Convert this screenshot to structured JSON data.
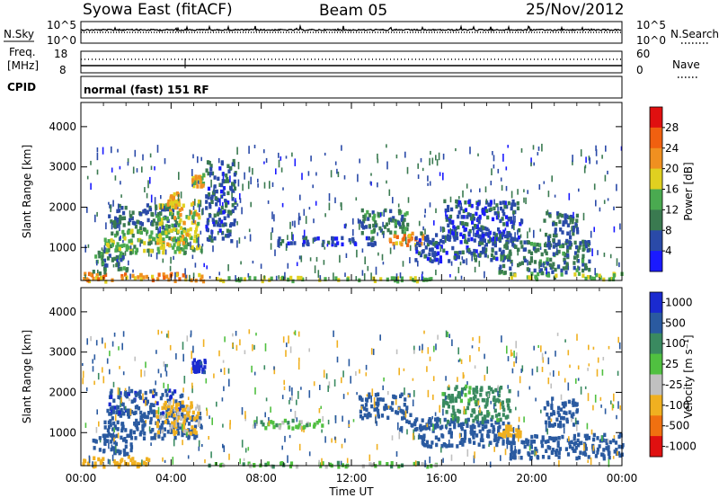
{
  "header": {
    "station": "Syowa East (fitACF)",
    "beam": "Beam 05",
    "date": "25/Nov/2012"
  },
  "nsky_panel": {
    "left_label": "N.Sky",
    "right_label": "N.Search",
    "left_ticks": [
      "10^5",
      "10^0"
    ],
    "right_ticks": [
      "10^5",
      "10^0"
    ],
    "series": [
      {
        "name": "N.Sky",
        "style": "solid"
      },
      {
        "name": "N.Search",
        "style": "dotted"
      }
    ]
  },
  "freq_panel": {
    "left_label_line1": "Freq.",
    "left_label_line2": "[MHz]",
    "right_label": "Nave",
    "left_ticks": [
      "18",
      "8"
    ],
    "right_ticks": [
      "60",
      "0"
    ],
    "series": [
      {
        "name": "Freq.",
        "style": "solid"
      },
      {
        "name": "Nave",
        "style": "dotted"
      }
    ]
  },
  "cpid": {
    "label": "CPID",
    "text": "normal (fast) 151 RF"
  },
  "chart_data": [
    {
      "type": "heatmap",
      "quantity": "power",
      "ylabel": "Slant Range [km]",
      "xlabel": "",
      "ylim": [
        180,
        4600
      ],
      "yticks": [
        1000,
        2000,
        3000,
        4000
      ],
      "xlim_hours": [
        0,
        24
      ],
      "xticks": [
        "00:00",
        "04:00",
        "08:00",
        "12:00",
        "16:00",
        "20:00",
        "00:00"
      ],
      "colorbar": {
        "label": "Power [dB]",
        "range": [
          0,
          32
        ],
        "ticks": [
          "4",
          "8",
          "12",
          "16",
          "20",
          "24",
          "28"
        ],
        "colors": [
          "#1a1aff",
          "#2a4aa8",
          "#3a7a50",
          "#4aaa50",
          "#e0d020",
          "#f09020",
          "#f06010",
          "#e01010"
        ]
      },
      "features": [
        {
          "t": [
            0.0,
            5.4
          ],
          "range": [
            200,
            400
          ],
          "value": 22
        },
        {
          "t": [
            0.5,
            2.0
          ],
          "range": [
            400,
            1000
          ],
          "value": 10
        },
        {
          "t": [
            1.0,
            5.3
          ],
          "range": [
            900,
            1500
          ],
          "value": 14
        },
        {
          "t": [
            1.2,
            4.2
          ],
          "range": [
            1500,
            2100
          ],
          "value": 8
        },
        {
          "t": [
            3.3,
            5.2
          ],
          "range": [
            1000,
            2200
          ],
          "value": 17
        },
        {
          "t": [
            3.8,
            4.3
          ],
          "range": [
            2100,
            2400
          ],
          "value": 20
        },
        {
          "t": [
            4.9,
            5.4
          ],
          "range": [
            2550,
            2850
          ],
          "value": 18
        },
        {
          "t": [
            5.5,
            6.8
          ],
          "range": [
            1200,
            3200
          ],
          "value": 7
        },
        {
          "t": [
            5.5,
            15.8
          ],
          "range": [
            200,
            300
          ],
          "value": 16
        },
        {
          "t": [
            8.5,
            13.0
          ],
          "range": [
            1100,
            1300
          ],
          "value": 6
        },
        {
          "t": [
            12.3,
            14.5
          ],
          "range": [
            1400,
            2000
          ],
          "value": 10
        },
        {
          "t": [
            13.6,
            15.2
          ],
          "range": [
            1100,
            1400
          ],
          "value": 23
        },
        {
          "t": [
            14.8,
            19.0
          ],
          "range": [
            700,
            1400
          ],
          "value": 7
        },
        {
          "t": [
            16.0,
            19.5
          ],
          "range": [
            1200,
            2200
          ],
          "value": 6
        },
        {
          "t": [
            18.5,
            22.5
          ],
          "range": [
            400,
            1200
          ],
          "value": 9
        },
        {
          "t": [
            19.0,
            24.0
          ],
          "range": [
            250,
            400
          ],
          "value": 15
        },
        {
          "t": [
            20.5,
            22.0
          ],
          "range": [
            1100,
            1900
          ],
          "value": 8
        }
      ]
    },
    {
      "type": "heatmap",
      "quantity": "velocity",
      "ylabel": "Slant Range [km]",
      "xlabel": "Time UT",
      "ylim": [
        180,
        4600
      ],
      "yticks": [
        1000,
        2000,
        3000,
        4000
      ],
      "xlim_hours": [
        0,
        24
      ],
      "xticks": [
        "00:00",
        "04:00",
        "08:00",
        "12:00",
        "16:00",
        "20:00",
        "00:00"
      ],
      "colorbar": {
        "label": "Velocity [m s⁻¹]",
        "ticks": [
          "1000",
          "500",
          "100",
          "25",
          "-25",
          "-100",
          "-500",
          "-1000"
        ],
        "colors": [
          "#1a2ad0",
          "#2a5aa0",
          "#3a8a60",
          "#50c040",
          "#c0c0c0",
          "#f0b020",
          "#f07010",
          "#e01010"
        ]
      },
      "features": [
        {
          "t": [
            0.0,
            3.0
          ],
          "range": [
            200,
            450
          ],
          "value": -300
        },
        {
          "t": [
            0.5,
            2.2
          ],
          "range": [
            500,
            1000
          ],
          "value": 200
        },
        {
          "t": [
            1.0,
            5.3
          ],
          "range": [
            900,
            1600
          ],
          "value": 300
        },
        {
          "t": [
            1.2,
            4.5
          ],
          "range": [
            1500,
            2100
          ],
          "value": 400
        },
        {
          "t": [
            3.3,
            5.2
          ],
          "range": [
            1000,
            1800
          ],
          "value": -120
        },
        {
          "t": [
            4.9,
            5.5
          ],
          "range": [
            2550,
            2850
          ],
          "value": 800
        },
        {
          "t": [
            5.5,
            15.8
          ],
          "range": [
            200,
            300
          ],
          "value": 0
        },
        {
          "t": [
            7.5,
            11.0
          ],
          "range": [
            1150,
            1350
          ],
          "value": 0
        },
        {
          "t": [
            12.3,
            14.6
          ],
          "range": [
            1400,
            2000
          ],
          "value": 300
        },
        {
          "t": [
            14.0,
            16.0
          ],
          "range": [
            1100,
            1400
          ],
          "value": 200
        },
        {
          "t": [
            15.0,
            19.0
          ],
          "range": [
            700,
            1400
          ],
          "value": 300
        },
        {
          "t": [
            16.0,
            19.0
          ],
          "range": [
            1300,
            2200
          ],
          "value": 60
        },
        {
          "t": [
            18.5,
            19.5
          ],
          "range": [
            950,
            1200
          ],
          "value": -300
        },
        {
          "t": [
            19.0,
            24.0
          ],
          "range": [
            400,
            1000
          ],
          "value": 300
        },
        {
          "t": [
            20.5,
            22.0
          ],
          "range": [
            1200,
            1900
          ],
          "value": 200
        }
      ]
    }
  ]
}
